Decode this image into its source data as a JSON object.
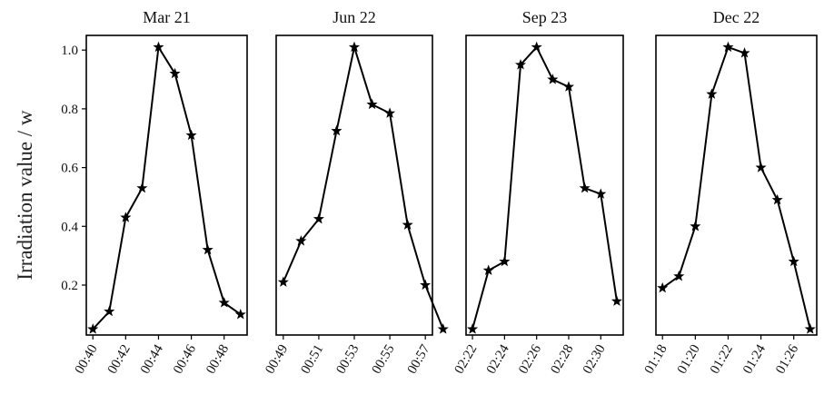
{
  "figure": {
    "ylabel": "Irradiation value / w"
  },
  "chart_data": [
    {
      "type": "line",
      "title": "Mar 21",
      "xlabel": "",
      "ylabel": "Irradiation value / w",
      "ylim": [
        0.03,
        1.05
      ],
      "yticks": [
        0.2,
        0.4,
        0.6,
        0.8,
        1.0
      ],
      "ytick_labels": [
        "0.2",
        "0.4",
        "0.6",
        "0.8",
        "1.0"
      ],
      "xlim": [
        "00:39.6",
        "00:49.4"
      ],
      "xticks": [
        "00:40",
        "00:42",
        "00:44",
        "00:46",
        "00:48"
      ],
      "marker": "star",
      "grid": false,
      "points": [
        {
          "x": "00:40",
          "y": 0.05
        },
        {
          "x": "00:41",
          "y": 0.11
        },
        {
          "x": "00:42",
          "y": 0.43
        },
        {
          "x": "00:43",
          "y": 0.53
        },
        {
          "x": "00:44",
          "y": 1.01
        },
        {
          "x": "00:45",
          "y": 0.92
        },
        {
          "x": "00:46",
          "y": 0.71
        },
        {
          "x": "00:47",
          "y": 0.32
        },
        {
          "x": "00:48",
          "y": 0.14
        },
        {
          "x": "00:49",
          "y": 0.1
        }
      ]
    },
    {
      "type": "line",
      "title": "Jun 22",
      "xlabel": "",
      "ylim": [
        0.03,
        1.05
      ],
      "xlim": [
        "00:48.6",
        "00:57.4"
      ],
      "xticks": [
        "00:49",
        "00:51",
        "00:53",
        "00:55",
        "00:57"
      ],
      "marker": "star",
      "grid": false,
      "points": [
        {
          "x": "00:49",
          "y": 0.21
        },
        {
          "x": "00:50",
          "y": 0.35
        },
        {
          "x": "00:51",
          "y": 0.425
        },
        {
          "x": "00:52",
          "y": 0.725
        },
        {
          "x": "00:53",
          "y": 1.01
        },
        {
          "x": "00:54",
          "y": 0.815
        },
        {
          "x": "00:55",
          "y": 0.785
        },
        {
          "x": "00:56",
          "y": 0.405
        },
        {
          "x": "00:57",
          "y": 0.2
        },
        {
          "x": "00:58",
          "y": 0.05
        }
      ]
    },
    {
      "type": "line",
      "title": "Sep 23",
      "xlabel": "",
      "ylim": [
        0.03,
        1.05
      ],
      "xlim": [
        "02:21.6",
        "02:31.4"
      ],
      "xticks": [
        "02:22",
        "02:24",
        "02:26",
        "02:28",
        "02:30"
      ],
      "marker": "star",
      "grid": false,
      "points": [
        {
          "x": "02:22",
          "y": 0.05
        },
        {
          "x": "02:23",
          "y": 0.25
        },
        {
          "x": "02:24",
          "y": 0.28
        },
        {
          "x": "02:25",
          "y": 0.95
        },
        {
          "x": "02:26",
          "y": 1.01
        },
        {
          "x": "02:27",
          "y": 0.9
        },
        {
          "x": "02:28",
          "y": 0.875
        },
        {
          "x": "02:29",
          "y": 0.53
        },
        {
          "x": "02:30",
          "y": 0.51
        },
        {
          "x": "02:31",
          "y": 0.145
        }
      ]
    },
    {
      "type": "line",
      "title": "Dec 22",
      "xlabel": "",
      "ylim": [
        0.03,
        1.05
      ],
      "xlim": [
        "01:17.6",
        "01:27.4"
      ],
      "xticks": [
        "01:18",
        "01:20",
        "01:22",
        "01:24",
        "01:26"
      ],
      "marker": "star",
      "grid": false,
      "points": [
        {
          "x": "01:18",
          "y": 0.19
        },
        {
          "x": "01:19",
          "y": 0.23
        },
        {
          "x": "01:20",
          "y": 0.4
        },
        {
          "x": "01:21",
          "y": 0.85
        },
        {
          "x": "01:22",
          "y": 1.01
        },
        {
          "x": "01:23",
          "y": 0.99
        },
        {
          "x": "01:24",
          "y": 0.6
        },
        {
          "x": "01:25",
          "y": 0.49
        },
        {
          "x": "01:26",
          "y": 0.28
        },
        {
          "x": "01:27",
          "y": 0.05
        }
      ]
    }
  ]
}
